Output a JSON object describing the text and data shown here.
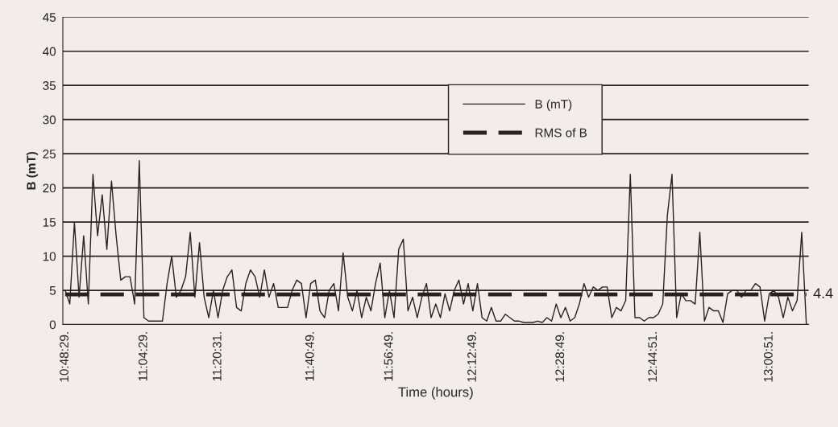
{
  "chart_data": {
    "type": "line",
    "xlabel": "Time (hours)",
    "ylabel": "B (mT)",
    "categories": [
      "10:48:29.",
      null,
      null,
      null,
      null,
      null,
      null,
      null,
      null,
      null,
      null,
      null,
      null,
      null,
      null,
      null,
      null,
      "11:04:29.",
      null,
      null,
      null,
      null,
      null,
      null,
      null,
      null,
      null,
      null,
      null,
      null,
      null,
      null,
      null,
      "11:20:31.",
      null,
      null,
      null,
      null,
      null,
      null,
      null,
      null,
      null,
      null,
      null,
      null,
      null,
      null,
      null,
      null,
      null,
      null,
      null,
      "11:40:49.",
      null,
      null,
      null,
      null,
      null,
      null,
      null,
      null,
      null,
      null,
      null,
      null,
      null,
      null,
      null,
      null,
      "11:56:49.",
      null,
      null,
      null,
      null,
      null,
      null,
      null,
      null,
      null,
      null,
      null,
      null,
      null,
      null,
      null,
      null,
      null,
      "12:12:49.",
      null,
      null,
      null,
      null,
      null,
      null,
      null,
      null,
      null,
      null,
      null,
      null,
      null,
      null,
      null,
      null,
      null,
      null,
      "12:28:49.",
      null,
      null,
      null,
      null,
      null,
      null,
      null,
      null,
      null,
      null,
      null,
      null,
      null,
      null,
      null,
      null,
      null,
      null,
      null,
      "12:44:51.",
      null,
      null,
      null,
      null,
      null,
      null,
      null,
      null,
      null,
      null,
      null,
      null,
      null,
      null,
      null,
      null,
      null,
      null,
      null,
      null,
      null,
      null,
      null,
      null,
      "13:00:51.",
      null,
      null,
      null,
      null,
      null,
      null,
      null,
      null
    ],
    "series": [
      {
        "name": "B (mT)",
        "color": "#2a2020",
        "line_style": "solid",
        "values": [
          5,
          3,
          15,
          4,
          13,
          3,
          22,
          13,
          19,
          11,
          21,
          13,
          6.5,
          7,
          7,
          3,
          24,
          1,
          0.5,
          0.5,
          0.5,
          0.5,
          6,
          10,
          4,
          5,
          7,
          13.5,
          4,
          12,
          4,
          1,
          5,
          1,
          5,
          7,
          8,
          2.5,
          2,
          6,
          8,
          7,
          4,
          8,
          4,
          6,
          2.5,
          2.5,
          2.5,
          5,
          6.5,
          6,
          1,
          6,
          6.5,
          2,
          1,
          5,
          6,
          2,
          10.5,
          4,
          2,
          5,
          1,
          4,
          2,
          6,
          9,
          1,
          5,
          1,
          11,
          12.5,
          2,
          4,
          1,
          4,
          6,
          1,
          3,
          1,
          4.5,
          2,
          5,
          6.5,
          3,
          6,
          2,
          6,
          1,
          0.5,
          2.5,
          0.5,
          0.5,
          1.5,
          1,
          0.5,
          0.5,
          0.3,
          0.3,
          0.3,
          0.5,
          0.3,
          1,
          0.5,
          3,
          1,
          2.5,
          0.5,
          1,
          3,
          6,
          4,
          5.5,
          5,
          5.5,
          5.5,
          1,
          2.5,
          2,
          3.5,
          22,
          1,
          1,
          0.5,
          1,
          1,
          1.5,
          3,
          16,
          22,
          1,
          4.5,
          3.5,
          3.5,
          3,
          13.5,
          0.5,
          2.5,
          2,
          2,
          0.3,
          4.5,
          5,
          5,
          4,
          5,
          5,
          6,
          5.5,
          0.5,
          4.5,
          5,
          4,
          1,
          4,
          2,
          3.5,
          13.5,
          0
        ]
      },
      {
        "name": "RMS of B",
        "color": "#2a2020",
        "line_style": "dashed",
        "values": [
          4.4,
          4.4,
          4.4,
          4.4,
          4.4,
          4.4,
          4.4,
          4.4,
          4.4,
          4.4,
          4.4,
          4.4,
          4.4,
          4.4,
          4.4,
          4.4,
          4.4,
          4.4,
          4.4,
          4.4,
          4.4,
          4.4,
          4.4,
          4.4,
          4.4,
          4.4,
          4.4,
          4.4,
          4.4,
          4.4,
          4.4,
          4.4,
          4.4,
          4.4,
          4.4,
          4.4,
          4.4,
          4.4,
          4.4,
          4.4,
          4.4,
          4.4,
          4.4,
          4.4,
          4.4,
          4.4,
          4.4,
          4.4,
          4.4,
          4.4,
          4.4,
          4.4,
          4.4,
          4.4,
          4.4,
          4.4,
          4.4,
          4.4,
          4.4,
          4.4,
          4.4,
          4.4,
          4.4,
          4.4,
          4.4,
          4.4,
          4.4,
          4.4,
          4.4,
          4.4,
          4.4,
          4.4,
          4.4,
          4.4,
          4.4,
          4.4,
          4.4,
          4.4,
          4.4,
          4.4,
          4.4,
          4.4,
          4.4,
          4.4,
          4.4,
          4.4,
          4.4,
          4.4,
          4.4,
          4.4,
          4.4,
          4.4,
          4.4,
          4.4,
          4.4,
          4.4,
          4.4,
          4.4,
          4.4,
          4.4,
          4.4,
          4.4,
          4.4,
          4.4,
          4.4,
          4.4,
          4.4,
          4.4,
          4.4,
          4.4,
          4.4,
          4.4,
          4.4,
          4.4,
          4.4,
          4.4,
          4.4,
          4.4,
          4.4,
          4.4,
          4.4,
          4.4,
          4.4,
          4.4,
          4.4,
          4.4,
          4.4,
          4.4,
          4.4,
          4.4,
          4.4,
          4.4,
          4.4,
          4.4,
          4.4,
          4.4,
          4.4,
          4.4,
          4.4,
          4.4,
          4.4,
          4.4,
          4.4,
          4.4,
          4.4,
          4.4,
          4.4,
          4.4,
          4.4,
          4.4,
          4.4,
          4.4,
          4.4,
          4.4,
          4.4,
          4.4,
          4.4,
          4.4,
          4.4,
          4.4,
          4.4
        ],
        "value_labels": [
          null,
          null,
          null,
          null,
          null,
          null,
          null,
          null,
          null,
          null,
          null,
          null,
          null,
          null,
          null,
          null,
          null,
          null,
          null,
          null,
          null,
          null,
          null,
          null,
          null,
          null,
          null,
          null,
          null,
          null,
          null,
          null,
          null,
          null,
          null,
          null,
          null,
          null,
          null,
          null,
          null,
          null,
          null,
          null,
          null,
          null,
          null,
          null,
          null,
          null,
          null,
          null,
          null,
          null,
          null,
          null,
          null,
          null,
          null,
          null,
          null,
          null,
          null,
          null,
          null,
          null,
          null,
          null,
          null,
          null,
          null,
          null,
          null,
          null,
          null,
          null,
          null,
          null,
          null,
          null,
          null,
          null,
          null,
          null,
          null,
          null,
          null,
          null,
          null,
          null,
          null,
          null,
          null,
          null,
          null,
          null,
          null,
          null,
          null,
          null,
          null,
          null,
          null,
          null,
          null,
          null,
          null,
          null,
          null,
          null,
          null,
          null,
          null,
          null,
          null,
          null,
          null,
          null,
          null,
          null,
          null,
          null,
          null,
          null,
          null,
          null,
          null,
          null,
          null,
          null,
          null,
          null,
          null,
          null,
          null,
          null,
          null,
          null,
          null,
          null,
          null,
          null,
          null,
          null,
          null,
          null,
          null,
          null,
          null,
          null,
          null,
          null,
          null,
          null,
          null,
          null,
          null,
          null,
          null,
          null,
          "4.4"
        ]
      }
    ],
    "ylim": [
      0,
      45
    ],
    "yticks": [
      0,
      5,
      10,
      15,
      20,
      25,
      30,
      35,
      40,
      45
    ],
    "grid": "y",
    "legend": "top"
  }
}
